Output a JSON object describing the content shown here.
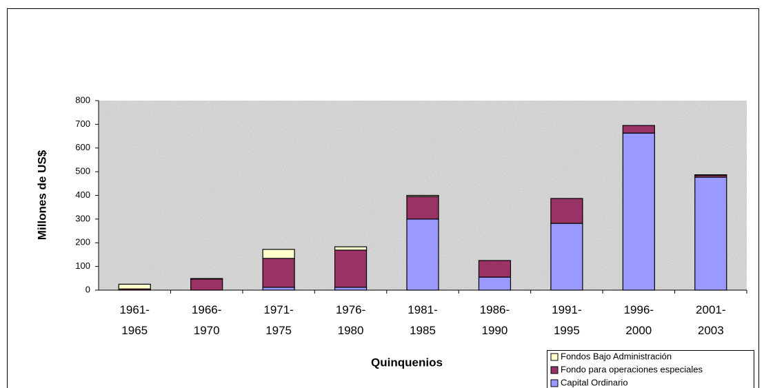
{
  "chart_data": {
    "type": "stacked_bar",
    "x_label": "Quinquenios",
    "y_label": "Millones de US$",
    "categories": [
      "1961-1965",
      "1966-1970",
      "1971-1975",
      "1976-1980",
      "1981-1985",
      "1986-1990",
      "1991-1995",
      "1996-2000",
      "2001-2003"
    ],
    "series": [
      {
        "name": "Capital Ordinario",
        "color": "#9999ff",
        "values": [
          0,
          0,
          12,
          12,
          300,
          55,
          282,
          663,
          477
        ]
      },
      {
        "name": "Fondo para operaciones especiales",
        "color": "#993366",
        "values": [
          5,
          47,
          122,
          157,
          95,
          70,
          105,
          32,
          8
        ]
      },
      {
        "name": "Fondos Bajo Administración",
        "color": "#ffffcc",
        "values": [
          20,
          2,
          38,
          14,
          5,
          0,
          0,
          0,
          2
        ]
      }
    ],
    "ylim": [
      0,
      800
    ],
    "yticks": [
      0,
      100,
      200,
      300,
      400,
      500,
      600,
      700,
      800
    ],
    "legend": "bottom-right"
  }
}
